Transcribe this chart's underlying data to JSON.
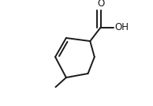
{
  "background_color": "#ffffff",
  "line_color": "#1a1a1a",
  "line_width": 1.4,
  "figsize": [
    1.94,
    1.34
  ],
  "dpi": 100,
  "font_size_labels": 8.5
}
